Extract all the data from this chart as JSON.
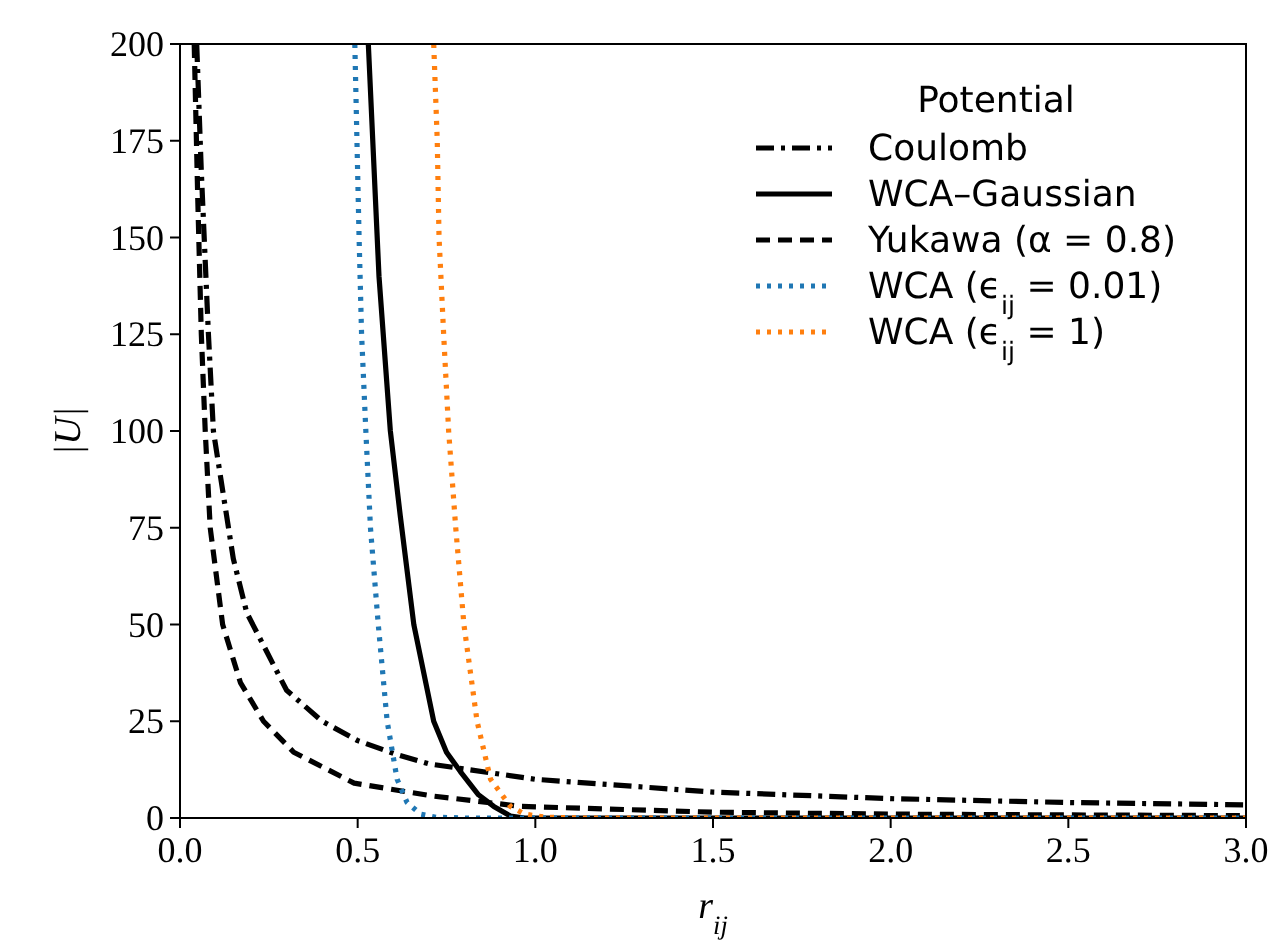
{
  "chart_data": {
    "type": "line",
    "xlabel": "r$_{ij}$",
    "ylabel": "|U|",
    "legend_title": "Potential",
    "legend": "top right",
    "grid": false,
    "xlim": [
      0,
      3
    ],
    "ylim": [
      0,
      200
    ],
    "xticks": [
      {
        "value": 0,
        "label": "0.0"
      },
      {
        "value": 0.5,
        "label": "0.5"
      },
      {
        "value": 1,
        "label": "1.0"
      },
      {
        "value": 1.5,
        "label": "1.5"
      },
      {
        "value": 2,
        "label": "2.0"
      },
      {
        "value": 2.5,
        "label": "2.5"
      },
      {
        "value": 3,
        "label": "3.0"
      }
    ],
    "yticks": [
      0,
      25,
      50,
      75,
      100,
      125,
      150,
      175,
      200
    ],
    "series": [
      {
        "name": "Coulomb",
        "color": "#000000",
        "line_style": "dashdot",
        "x": [
          0.047,
          0.06,
          0.08,
          0.094,
          0.15,
          0.188,
          0.3,
          0.4,
          0.5,
          0.61,
          0.7,
          1,
          1.5,
          2,
          2.5,
          3
        ],
        "values": [
          200,
          167,
          125,
          100,
          67,
          53,
          33,
          25,
          20,
          16.4,
          14,
          10,
          6.7,
          5,
          4,
          3.4
        ]
      },
      {
        "name": "WCA–Gaussian",
        "color": "#000000",
        "line_style": "solid",
        "x": [
          0.53,
          0.56,
          0.592,
          0.62,
          0.658,
          0.714,
          0.75,
          0.789,
          0.84,
          0.883,
          0.93,
          0.97,
          1.5,
          2,
          2.5,
          3
        ],
        "values": [
          200,
          140,
          100,
          78,
          50,
          25,
          17,
          12,
          6,
          3,
          0.5,
          0,
          0,
          0,
          0,
          0
        ]
      },
      {
        "name": "Yukawa (α = 0.8)",
        "color": "#000000",
        "line_style": "dashed",
        "x": [
          0.04,
          0.05,
          0.06,
          0.071,
          0.085,
          0.12,
          0.17,
          0.235,
          0.32,
          0.49,
          0.71,
          0.96,
          1.5,
          2,
          2.5,
          3
        ],
        "values": [
          200,
          160,
          125,
          100,
          75,
          50,
          35,
          25,
          17,
          9,
          5.7,
          3,
          1.5,
          1,
          0.8,
          0.6
        ]
      },
      {
        "name": "WCA (ϵ$_{ij}$ = 0.01)",
        "color": "#1f77b4",
        "line_style": "dotted",
        "x": [
          0.492,
          0.498,
          0.504,
          0.511,
          0.523,
          0.536,
          0.558,
          0.583,
          0.611,
          0.639,
          0.677,
          0.72,
          0.8,
          1.5,
          2,
          2.5,
          3
        ],
        "values": [
          200,
          175,
          150,
          125,
          100,
          75,
          50,
          25,
          10,
          4,
          1,
          0.2,
          0,
          0,
          0,
          0,
          0
        ]
      },
      {
        "name": "WCA (ϵ$_{ij}$ = 1)",
        "color": "#ff7f0e",
        "line_style": "dotted",
        "x": [
          0.714,
          0.724,
          0.729,
          0.742,
          0.756,
          0.776,
          0.799,
          0.836,
          0.874,
          0.93,
          0.97,
          1.03,
          1.12,
          1.5,
          2,
          2.5,
          3
        ],
        "values": [
          200,
          175,
          150,
          125,
          100,
          75,
          50,
          25,
          10,
          3,
          1,
          0.2,
          0,
          0,
          0,
          0,
          0
        ]
      }
    ]
  }
}
